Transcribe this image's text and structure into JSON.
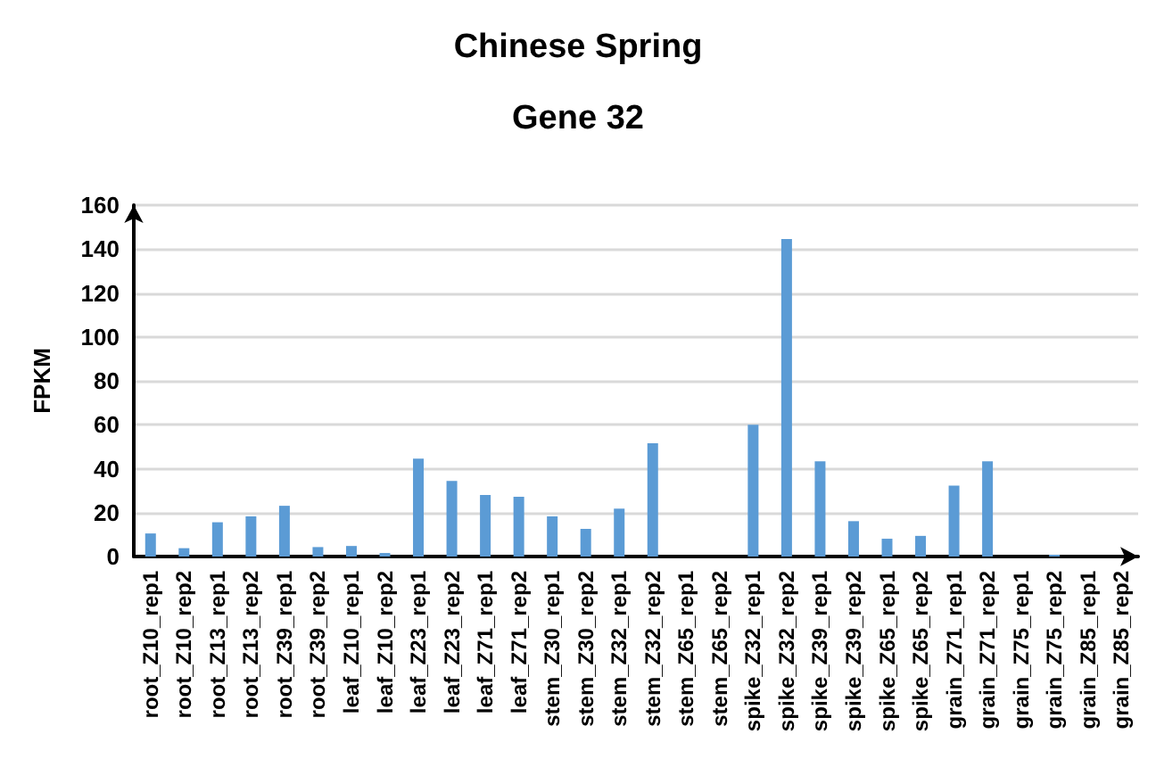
{
  "chart_data": {
    "type": "bar",
    "title": "Chinese Spring",
    "subtitle": "Gene 32",
    "ylabel": "FPKM",
    "categories": [
      "root_Z10_rep1",
      "root_Z10_rep2",
      "root_Z13_rep1",
      "root_Z13_rep2",
      "root_Z39_rep1",
      "root_Z39_rep2",
      "leaf_Z10_rep1",
      "leaf_Z10_rep2",
      "leaf_Z23_rep1",
      "leaf_Z23_rep2",
      "leaf_Z71_rep1",
      "leaf_Z71_rep2",
      "stem_Z30_rep1",
      "stem_Z30_rep2",
      "stem_Z32_rep1",
      "stem_Z32_rep2",
      "stem_Z65_rep1",
      "stem_Z65_rep2",
      "spike_Z32_rep1",
      "spike_Z32_rep2",
      "spike_Z39_rep1",
      "spike_Z39_rep2",
      "spike_Z65_rep1",
      "spike_Z65_rep2",
      "grain_Z71_rep1",
      "grain_Z71_rep2",
      "grain_Z75_rep1",
      "grain_Z75_rep2",
      "grain_Z85_rep1",
      "grain_Z85_rep2"
    ],
    "values": [
      10.5,
      3.8,
      15.6,
      18.3,
      23.1,
      4.3,
      4.8,
      1.6,
      44.6,
      34.4,
      28,
      27.2,
      18.3,
      12.6,
      21.8,
      51.6,
      0,
      0,
      60,
      144.6,
      43.3,
      16.1,
      8.1,
      9.4,
      32.3,
      43.3,
      0,
      0.8,
      0,
      0
    ],
    "color": "#5b9bd5",
    "ylim": [
      0,
      160
    ],
    "yticks": [
      0,
      20,
      40,
      60,
      80,
      100,
      120,
      140,
      160
    ],
    "grid": "y"
  }
}
